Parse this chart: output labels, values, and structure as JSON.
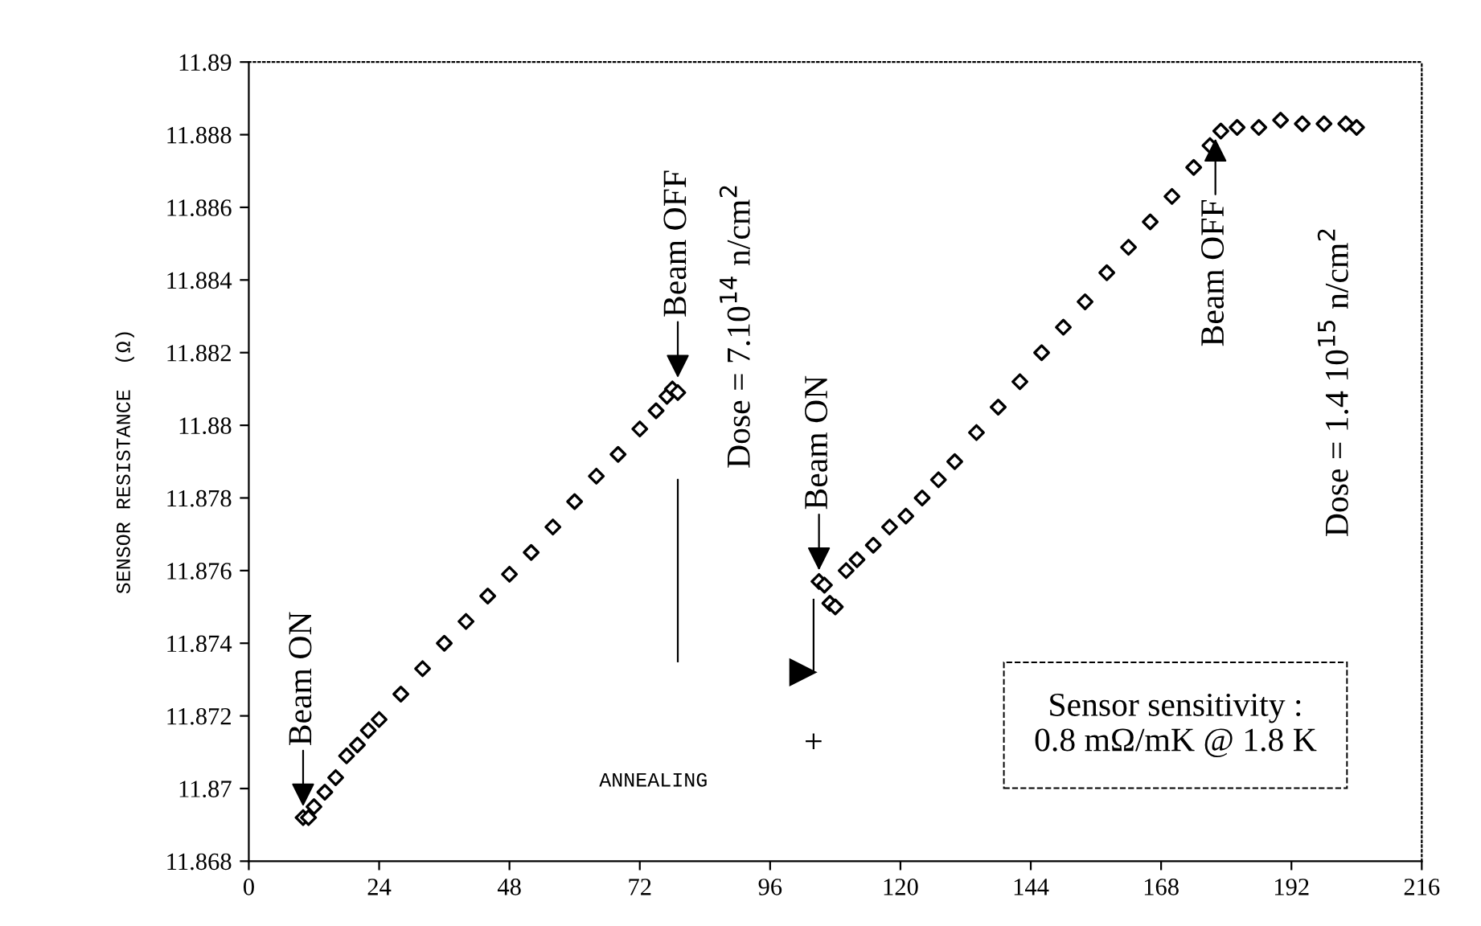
{
  "chart_data": {
    "type": "scatter",
    "ylabel": "SENSOR RESISTANCE  (Ω)",
    "xlim": [
      0,
      216
    ],
    "xticks": [
      0,
      24,
      48,
      72,
      96,
      120,
      144,
      168,
      192,
      216
    ],
    "ylim": [
      11.868,
      11.89
    ],
    "yticks": [
      11.868,
      11.87,
      11.872,
      11.874,
      11.876,
      11.878,
      11.88,
      11.882,
      11.884,
      11.886,
      11.888,
      11.89
    ],
    "marker": "diamond",
    "grid": false,
    "series": [
      {
        "color": "#000000",
        "x": [
          10,
          11,
          12,
          14,
          16,
          18,
          20,
          22,
          24,
          28,
          32,
          36,
          40,
          44,
          48,
          52,
          56,
          60,
          64,
          68,
          72,
          75,
          77,
          78,
          79,
          105,
          106,
          107,
          108,
          110,
          112,
          115,
          118,
          121,
          124,
          127,
          130,
          134,
          138,
          142,
          146,
          150,
          154,
          158,
          162,
          166,
          170,
          174,
          177,
          179,
          182,
          186,
          190,
          194,
          198,
          202,
          204
        ],
        "values": [
          11.8692,
          11.8692,
          11.8695,
          11.8699,
          11.8703,
          11.8709,
          11.8712,
          11.8716,
          11.8719,
          11.8726,
          11.8733,
          11.874,
          11.8746,
          11.8753,
          11.8759,
          11.8765,
          11.8772,
          11.8779,
          11.8786,
          11.8792,
          11.8799,
          11.8804,
          11.8808,
          11.881,
          11.8809,
          11.8757,
          11.8756,
          11.8751,
          11.875,
          11.876,
          11.8763,
          11.8767,
          11.8772,
          11.8775,
          11.878,
          11.8785,
          11.879,
          11.8798,
          11.8805,
          11.8812,
          11.882,
          11.8827,
          11.8834,
          11.8842,
          11.8849,
          11.8856,
          11.8863,
          11.8871,
          11.8877,
          11.8881,
          11.8882,
          11.8882,
          11.8884,
          11.8883,
          11.8883,
          11.8883,
          11.8882
        ]
      },
      {
        "color": "#000000",
        "marker": "cross",
        "x": [
          104
        ],
        "values": [
          11.8713
        ]
      }
    ],
    "annotations": [
      {
        "text": "Beam ON",
        "x": 10,
        "y": 11.8692
      },
      {
        "text": "Beam OFF",
        "x": 79,
        "y": 11.881
      },
      "Dose = 7.10$^{14}$ n/cm$^{2}$",
      {
        "text": "Beam ON",
        "x": 105,
        "y": 11.8757
      },
      {
        "text": "Beam OFF",
        "x": 178,
        "y": 11.8882
      },
      "Dose = 1.4 10$^{15}$ n/cm$^{2}$",
      "ANNEALING",
      "Sensor sensitivity :\n0.8 mΩ/mK @ 1.8 K"
    ]
  }
}
